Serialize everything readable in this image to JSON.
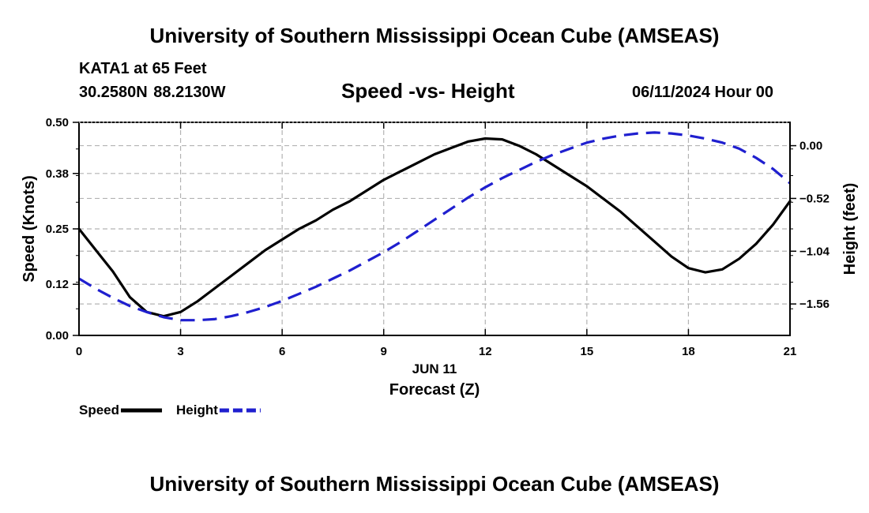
{
  "header": {
    "title": "University of Southern Mississippi Ocean Cube (AMSEAS)",
    "station": "KATA1 at 65 Feet",
    "coordinates": "30.2580N  88.2130W",
    "subtitle": "Speed -vs- Height",
    "datetime": "06/11/2024 Hour 00"
  },
  "footer": {
    "title": "University of Southern Mississippi Ocean Cube (AMSEAS)"
  },
  "chart_data": {
    "type": "line",
    "title": "Speed -vs- Height",
    "xlabel": "Forecast (Z)",
    "xlabel_date": "JUN 11",
    "ylabel": "Speed (Knots)",
    "y2label": "Height (feet)",
    "xlim": [
      0,
      21
    ],
    "ylim": [
      0,
      0.5
    ],
    "y2lim": [
      -1.87,
      0.23
    ],
    "x_ticks": [
      0,
      3,
      6,
      9,
      12,
      15,
      18,
      21
    ],
    "x_tick_labels": [
      "0",
      "3",
      "6",
      "9",
      "12",
      "15",
      "18",
      "21"
    ],
    "y_ticks": [
      0.0,
      0.12,
      0.25,
      0.38,
      0.5
    ],
    "y_tick_labels": [
      "0.00",
      "0.12",
      "0.25",
      "0.38",
      "0.50"
    ],
    "y2_ticks": [
      0.0,
      -0.52,
      -1.04,
      -1.56
    ],
    "y2_tick_labels": [
      "0.00",
      "−0.52",
      "−1.04",
      "−1.56"
    ],
    "grid": true,
    "legend_placement": "bottom-left",
    "x": [
      0,
      0.5,
      1,
      1.5,
      2,
      2.5,
      3,
      3.5,
      4,
      4.5,
      5,
      5.5,
      6,
      6.5,
      7,
      7.5,
      8,
      8.5,
      9,
      9.5,
      10,
      10.5,
      11,
      11.5,
      12,
      12.5,
      13,
      13.5,
      14,
      14.5,
      15,
      15.5,
      16,
      16.5,
      17,
      17.5,
      18,
      18.5,
      19,
      19.5,
      20,
      20.5,
      21
    ],
    "series": [
      {
        "name": "Speed",
        "axis": "left",
        "color": "#000000",
        "style": "solid",
        "values": [
          0.25,
          0.2,
          0.15,
          0.09,
          0.055,
          0.045,
          0.055,
          0.08,
          0.11,
          0.14,
          0.17,
          0.2,
          0.225,
          0.25,
          0.27,
          0.295,
          0.315,
          0.34,
          0.365,
          0.385,
          0.405,
          0.425,
          0.44,
          0.455,
          0.462,
          0.46,
          0.445,
          0.425,
          0.4,
          0.375,
          0.35,
          0.32,
          0.29,
          0.255,
          0.22,
          0.185,
          0.158,
          0.148,
          0.155,
          0.18,
          0.215,
          0.26,
          0.315
        ]
      },
      {
        "name": "Height",
        "axis": "right",
        "color": "#1f1fcf",
        "style": "dashed",
        "values": [
          -1.31,
          -1.41,
          -1.5,
          -1.58,
          -1.64,
          -1.69,
          -1.72,
          -1.72,
          -1.71,
          -1.68,
          -1.64,
          -1.59,
          -1.53,
          -1.46,
          -1.39,
          -1.31,
          -1.23,
          -1.14,
          -1.05,
          -0.95,
          -0.84,
          -0.73,
          -0.62,
          -0.51,
          -0.41,
          -0.32,
          -0.24,
          -0.16,
          -0.09,
          -0.03,
          0.03,
          0.07,
          0.1,
          0.12,
          0.13,
          0.12,
          0.1,
          0.07,
          0.03,
          -0.03,
          -0.12,
          -0.23,
          -0.37
        ]
      }
    ]
  }
}
